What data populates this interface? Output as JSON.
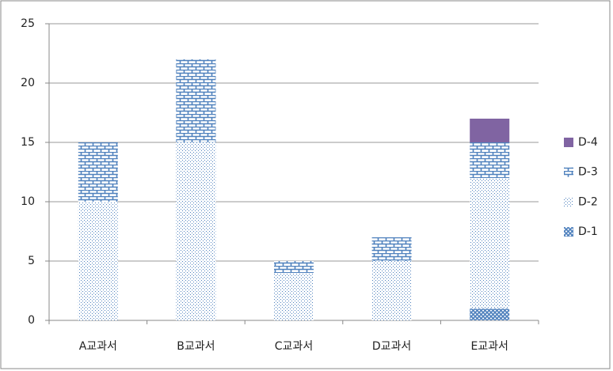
{
  "chart_data": {
    "type": "stacked_bar",
    "categories": [
      "A교과서",
      "B교과서",
      "C교과서",
      "D교과서",
      "E교과서"
    ],
    "series": [
      {
        "name": "D-1",
        "color": "#4f81bd",
        "pattern": "crosshatch",
        "values": [
          0,
          0,
          0,
          0,
          1
        ]
      },
      {
        "name": "D-2",
        "color": "#4f81bd",
        "pattern": "dots",
        "values": [
          10,
          15,
          4,
          5,
          11
        ]
      },
      {
        "name": "D-3",
        "color": "#4f81bd",
        "pattern": "brick",
        "values": [
          5,
          7,
          1,
          2,
          3
        ]
      },
      {
        "name": "D-4",
        "color": "#8064a2",
        "pattern": "solid",
        "values": [
          0,
          0,
          0,
          0,
          2
        ]
      }
    ],
    "ylim": [
      0,
      25
    ],
    "yticks": [
      0,
      5,
      10,
      15,
      20,
      25
    ],
    "grid": true,
    "legend": "right"
  }
}
